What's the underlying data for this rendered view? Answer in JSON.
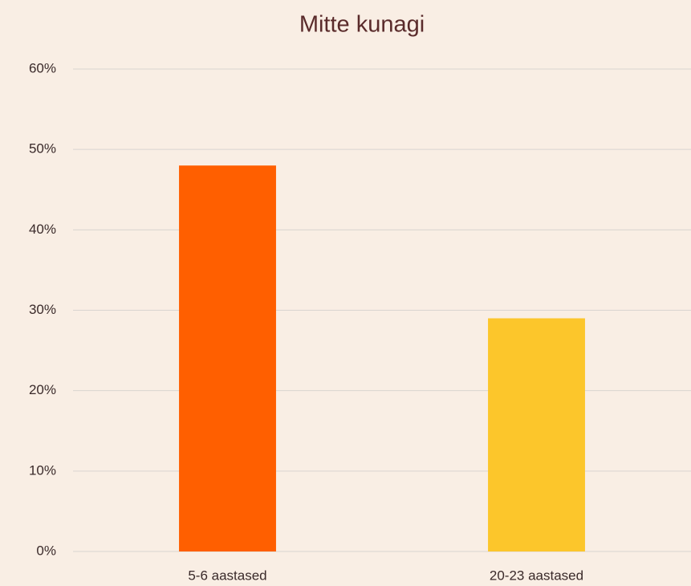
{
  "chart_data": {
    "type": "bar",
    "title": "Mitte kunagi",
    "categories": [
      "5-6 aastased",
      "20-23 aastased"
    ],
    "values": [
      48,
      29
    ],
    "colors": [
      "#ff5f00",
      "#fcc62b"
    ],
    "ylim": [
      0,
      60
    ],
    "yticks": [
      {
        "value": 0,
        "label": "0%"
      },
      {
        "value": 10,
        "label": "10%"
      },
      {
        "value": 20,
        "label": "20%"
      },
      {
        "value": 30,
        "label": "30%"
      },
      {
        "value": 40,
        "label": "40%"
      },
      {
        "value": 50,
        "label": "50%"
      },
      {
        "value": 60,
        "label": "60%"
      }
    ],
    "grid": true
  }
}
